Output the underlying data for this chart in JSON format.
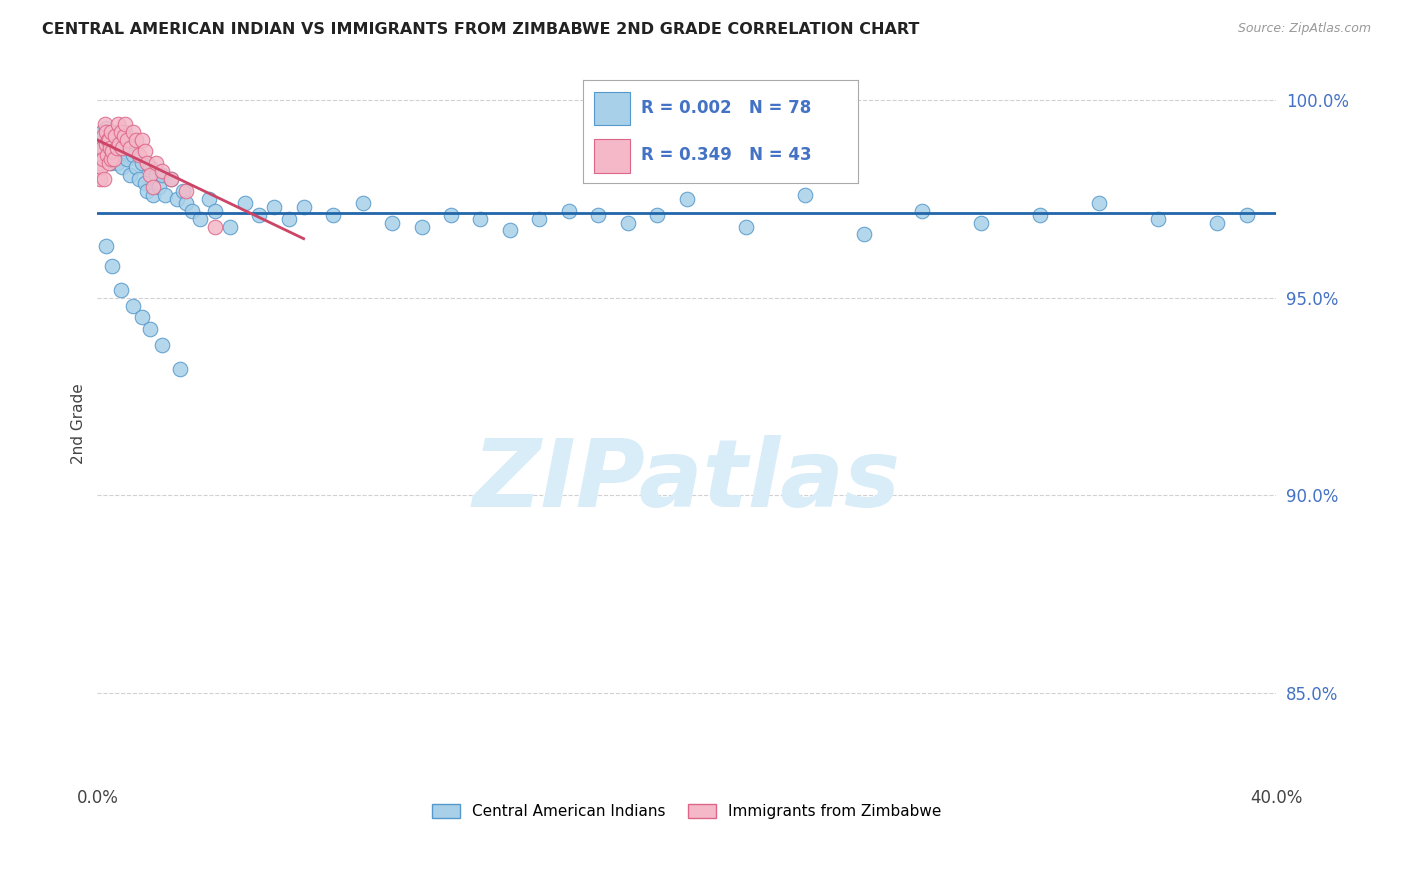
{
  "title": "CENTRAL AMERICAN INDIAN VS IMMIGRANTS FROM ZIMBABWE 2ND GRADE CORRELATION CHART",
  "source": "Source: ZipAtlas.com",
  "ylabel": "2nd Grade",
  "y_ticks": [
    0.85,
    0.9,
    0.95,
    1.0
  ],
  "y_tick_labels": [
    "85.0%",
    "90.0%",
    "95.0%",
    "100.0%"
  ],
  "xlim": [
    0.0,
    40.0
  ],
  "ylim": [
    0.828,
    1.008
  ],
  "legend_label_blue": "Central American Indians",
  "legend_label_pink": "Immigrants from Zimbabwe",
  "blue_color": "#a8d0e8",
  "pink_color": "#f4b8c8",
  "blue_edge_color": "#5599cc",
  "pink_edge_color": "#dd6688",
  "blue_line_color": "#2266aa",
  "pink_line_color": "#cc4466",
  "watermark_color": "#d8edf8",
  "grid_color": "#cccccc",
  "background_color": "#ffffff",
  "tick_color": "#4472c4",
  "title_color": "#222222",
  "blue_scatter_x": [
    0.1,
    0.15,
    0.2,
    0.25,
    0.3,
    0.35,
    0.4,
    0.45,
    0.5,
    0.55,
    0.6,
    0.65,
    0.7,
    0.75,
    0.8,
    0.85,
    0.9,
    0.95,
    1.0,
    1.05,
    1.1,
    1.2,
    1.3,
    1.4,
    1.5,
    1.6,
    1.7,
    1.8,
    1.9,
    2.0,
    2.1,
    2.2,
    2.3,
    2.5,
    2.7,
    2.9,
    3.0,
    3.2,
    3.5,
    3.8,
    4.0,
    4.5,
    5.0,
    5.5,
    6.0,
    6.5,
    7.0,
    8.0,
    9.0,
    10.0,
    11.0,
    12.0,
    13.0,
    14.0,
    15.0,
    16.0,
    17.0,
    18.0,
    19.0,
    20.0,
    22.0,
    24.0,
    26.0,
    28.0,
    30.0,
    32.0,
    34.0,
    36.0,
    38.0,
    39.0,
    0.3,
    0.5,
    0.8,
    1.2,
    1.5,
    1.8,
    2.2,
    2.8
  ],
  "blue_scatter_y": [
    0.99,
    0.992,
    0.988,
    0.985,
    0.993,
    0.987,
    0.989,
    0.984,
    0.991,
    0.986,
    0.988,
    0.984,
    0.992,
    0.986,
    0.99,
    0.983,
    0.987,
    0.992,
    0.985,
    0.988,
    0.981,
    0.986,
    0.983,
    0.98,
    0.984,
    0.979,
    0.977,
    0.983,
    0.976,
    0.981,
    0.978,
    0.981,
    0.976,
    0.98,
    0.975,
    0.977,
    0.974,
    0.972,
    0.97,
    0.975,
    0.972,
    0.968,
    0.974,
    0.971,
    0.973,
    0.97,
    0.973,
    0.971,
    0.974,
    0.969,
    0.968,
    0.971,
    0.97,
    0.967,
    0.97,
    0.972,
    0.971,
    0.969,
    0.971,
    0.975,
    0.968,
    0.976,
    0.966,
    0.972,
    0.969,
    0.971,
    0.974,
    0.97,
    0.969,
    0.971,
    0.963,
    0.958,
    0.952,
    0.948,
    0.945,
    0.942,
    0.938,
    0.932
  ],
  "pink_scatter_x": [
    0.05,
    0.08,
    0.1,
    0.12,
    0.15,
    0.18,
    0.2,
    0.22,
    0.25,
    0.28,
    0.3,
    0.32,
    0.35,
    0.38,
    0.4,
    0.42,
    0.45,
    0.48,
    0.5,
    0.55,
    0.6,
    0.65,
    0.7,
    0.75,
    0.8,
    0.85,
    0.9,
    0.95,
    1.0,
    1.1,
    1.2,
    1.3,
    1.4,
    1.5,
    1.6,
    1.7,
    1.8,
    1.9,
    2.0,
    2.2,
    2.5,
    3.0,
    4.0
  ],
  "pink_scatter_y": [
    0.984,
    0.986,
    0.98,
    0.983,
    0.988,
    0.991,
    0.985,
    0.98,
    0.994,
    0.989,
    0.992,
    0.986,
    0.99,
    0.984,
    0.99,
    0.988,
    0.985,
    0.992,
    0.987,
    0.985,
    0.991,
    0.988,
    0.994,
    0.989,
    0.992,
    0.988,
    0.991,
    0.994,
    0.99,
    0.988,
    0.992,
    0.99,
    0.986,
    0.99,
    0.987,
    0.984,
    0.981,
    0.978,
    0.984,
    0.982,
    0.98,
    0.977,
    0.968
  ],
  "pink_line_x_start": 0.0,
  "pink_line_x_end": 7.0,
  "blue_regression_y": 0.9715,
  "watermark": "ZIPatlas",
  "legend_r_blue": "R = 0.002",
  "legend_n_blue": "N = 78",
  "legend_r_pink": "R = 0.349",
  "legend_n_pink": "N = 43"
}
